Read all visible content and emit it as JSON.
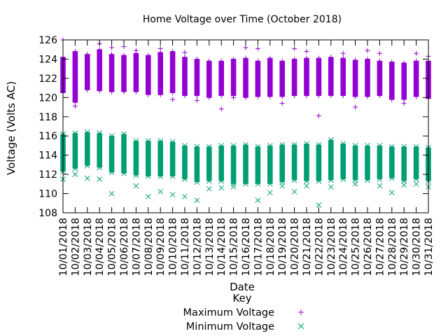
{
  "chart_data": {
    "type": "scatter",
    "title": "Home Voltage over Time (October 2018)",
    "xlabel": "Date",
    "ylabel": "Voltage (Volts AC)",
    "ylim": [
      108,
      126
    ],
    "yticks": [
      108,
      110,
      112,
      114,
      116,
      118,
      120,
      122,
      124,
      126
    ],
    "grid": false,
    "legend": {
      "title": "Key",
      "placement": "below",
      "entries": [
        {
          "name": "Maximum Voltage",
          "marker": "+",
          "color": "#9400d3"
        },
        {
          "name": "Minimum Voltage",
          "marker": "x",
          "color": "#009e73"
        }
      ]
    },
    "categories": [
      "10/01/2018",
      "10/02/2018",
      "10/03/2018",
      "10/04/2018",
      "10/05/2018",
      "10/06/2018",
      "10/07/2018",
      "10/08/2018",
      "10/09/2018",
      "10/10/2018",
      "10/11/2018",
      "10/12/2018",
      "10/13/2018",
      "10/14/2018",
      "10/15/2018",
      "10/16/2018",
      "10/17/2018",
      "10/18/2018",
      "10/19/2018",
      "10/20/2018",
      "10/21/2018",
      "10/22/2018",
      "10/23/2018",
      "10/24/2018",
      "10/25/2018",
      "10/26/2018",
      "10/27/2018",
      "10/28/2018",
      "10/29/2018",
      "10/30/2018",
      "10/31/2018"
    ],
    "series": [
      {
        "name": "Maximum Voltage",
        "color": "#9400d3",
        "marker": "+",
        "band_low": [
          120.5,
          119.5,
          120.8,
          120.7,
          120.6,
          120.6,
          120.6,
          120.3,
          120.3,
          120.5,
          120.2,
          120.2,
          120.0,
          120.2,
          120.2,
          120.0,
          120.1,
          120.1,
          120.1,
          120.2,
          120.2,
          120.2,
          120.2,
          120.2,
          120.1,
          120.1,
          120.2,
          119.8,
          119.8,
          120.1,
          119.9
        ],
        "band_high": [
          124.2,
          124.8,
          124.5,
          125.0,
          124.5,
          124.4,
          124.6,
          124.4,
          124.7,
          124.8,
          124.2,
          124.0,
          123.8,
          123.8,
          124.0,
          124.1,
          123.8,
          124.1,
          123.8,
          124.0,
          124.1,
          124.1,
          124.2,
          124.1,
          123.9,
          124.0,
          123.8,
          123.7,
          123.6,
          123.8,
          123.8
        ],
        "outliers": [
          126.0,
          119.1,
          125.6,
          125.2,
          125.3,
          124.9,
          125.1,
          119.8,
          124.7,
          119.7,
          118.8,
          120.0,
          125.2,
          125.1,
          119.4,
          125.1,
          124.8,
          118.1,
          124.6,
          119.0,
          124.9,
          124.6,
          119.4,
          124.6,
          124.3
        ]
      },
      {
        "name": "Minimum Voltage",
        "color": "#009e73",
        "marker": "x",
        "band_low": [
          112.3,
          112.6,
          112.9,
          112.7,
          112.2,
          112.1,
          111.9,
          111.8,
          111.8,
          111.8,
          111.5,
          111.2,
          111.3,
          111.3,
          111.0,
          111.0,
          111.0,
          111.0,
          111.2,
          111.4,
          111.3,
          111.3,
          111.4,
          111.5,
          111.4,
          111.4,
          111.5,
          111.6,
          111.3,
          111.5,
          111.3
        ],
        "band_high": [
          116.2,
          116.3,
          116.4,
          116.3,
          116.0,
          116.2,
          115.5,
          115.5,
          115.5,
          115.4,
          115.0,
          114.9,
          114.9,
          115.0,
          115.0,
          115.1,
          114.9,
          115.0,
          115.1,
          115.1,
          115.2,
          115.1,
          115.6,
          115.2,
          115.0,
          115.0,
          115.0,
          114.9,
          114.9,
          114.9,
          114.8
        ],
        "outliers": [
          111.5,
          112.0,
          111.6,
          111.5,
          110.0,
          110.8,
          109.7,
          110.2,
          109.9,
          109.7,
          109.3,
          110.5,
          110.6,
          110.7,
          109.3,
          110.1,
          110.8,
          110.2,
          110.8,
          108.8,
          110.7,
          111.8,
          111.0,
          110.8,
          110.1,
          110.9,
          111.0,
          110.7
        ]
      }
    ]
  }
}
